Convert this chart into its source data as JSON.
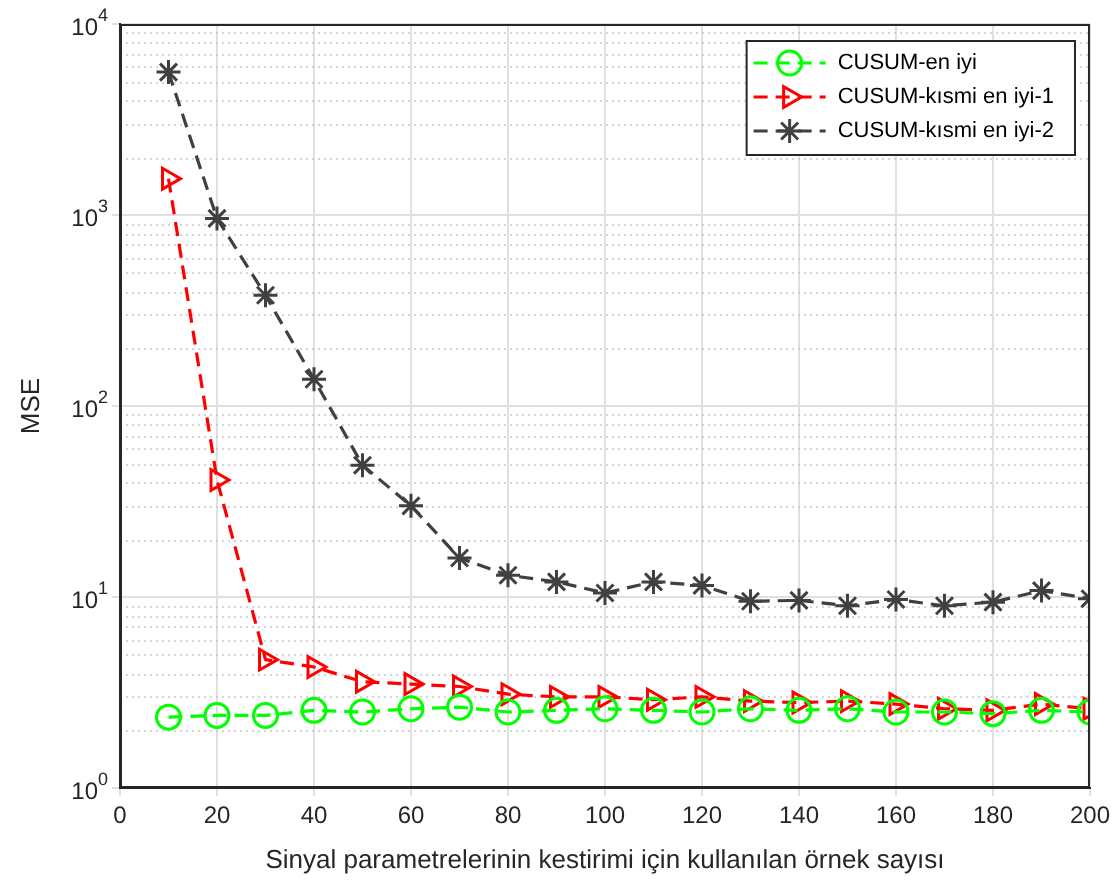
{
  "chart_data": {
    "type": "line",
    "xlabel": "Sinyal parametrelerinin kestirimi için kullanılan örnek sayısı",
    "ylabel": "MSE",
    "x": [
      10,
      20,
      30,
      40,
      50,
      60,
      70,
      80,
      90,
      100,
      110,
      120,
      130,
      140,
      150,
      160,
      170,
      180,
      190,
      200
    ],
    "series": [
      {
        "name": "CUSUM-en iyi",
        "color": "#00ff00",
        "marker": "circle",
        "values": [
          2.35,
          2.4,
          2.4,
          2.55,
          2.5,
          2.6,
          2.65,
          2.5,
          2.55,
          2.6,
          2.55,
          2.5,
          2.6,
          2.55,
          2.6,
          2.5,
          2.5,
          2.45,
          2.55,
          2.5
        ]
      },
      {
        "name": "CUSUM-kısmi en iyi-1",
        "color": "#ff0000",
        "marker": "triangle",
        "values": [
          1550,
          41,
          4.7,
          4.3,
          3.6,
          3.5,
          3.4,
          3.1,
          3.0,
          3.0,
          2.9,
          3.0,
          2.85,
          2.8,
          2.85,
          2.75,
          2.6,
          2.55,
          2.75,
          2.6
        ]
      },
      {
        "name": "CUSUM-kısmi en iyi-2",
        "color": "#404040",
        "marker": "cross",
        "values": [
          5600,
          960,
          380,
          138,
          49,
          30,
          16,
          13,
          12,
          10.5,
          12,
          11.5,
          9.5,
          9.6,
          9,
          9.7,
          9,
          9.4,
          10.8,
          9.8
        ]
      }
    ],
    "xlim": [
      0,
      200
    ],
    "xticks": [
      0,
      20,
      40,
      60,
      80,
      100,
      120,
      140,
      160,
      180,
      200
    ],
    "ylim": [
      1,
      10000
    ],
    "yticks": [
      {
        "value": 1,
        "label": "10$^{0}$"
      },
      {
        "value": 10,
        "label": "10$^{1}$"
      },
      {
        "value": 100,
        "label": "10$^{2}$"
      },
      {
        "value": 1000,
        "label": "10$^{3}$"
      },
      {
        "value": 10000,
        "label": "10$^{4}$"
      }
    ],
    "log": "y",
    "grid": true,
    "legend": "top right",
    "line_style": "dashed"
  }
}
